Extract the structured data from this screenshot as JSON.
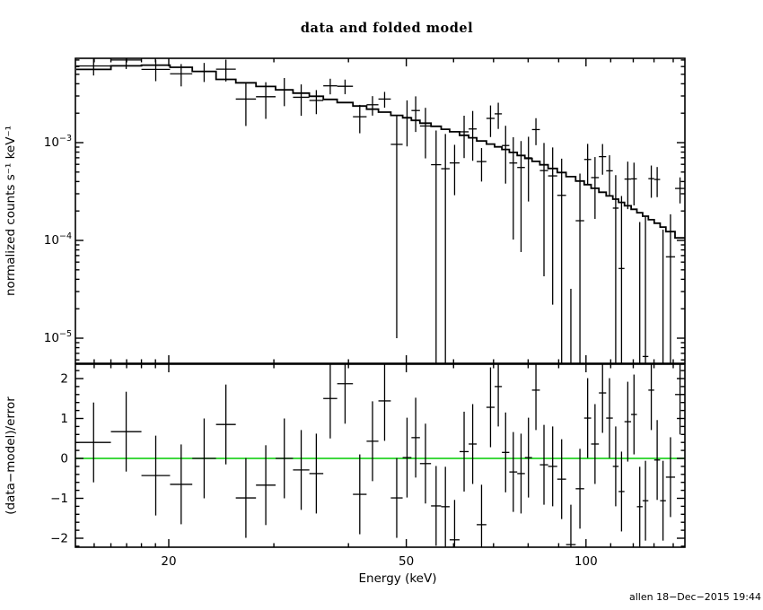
{
  "window_title": "data and folded model",
  "title": "data and folded model",
  "xlabel": "Energy (keV)",
  "ylabel_top": "normalized counts s⁻¹ keV⁻¹",
  "ylabel_bottom": "(data−model)/error",
  "timestamp": "allen 18−Dec−2015 19:44",
  "colors": {
    "foreground": "#000000",
    "background": "#ffffff",
    "zero_line": "#00CC00"
  },
  "chart_data": {
    "type": "scatter",
    "layout": "two stacked panels sharing a logarithmic energy axis",
    "x_axis": {
      "label": "Energy (keV)",
      "scale": "log",
      "range_kev": [
        14.0,
        146.5
      ],
      "major_ticks": [
        20,
        50,
        100
      ],
      "major_tick_labels": [
        "20",
        "50",
        "100"
      ],
      "minor_ticks": [
        15,
        16,
        17,
        18,
        19,
        30,
        40,
        60,
        70,
        80,
        90,
        110,
        120,
        130,
        140
      ]
    },
    "top_panel": {
      "description": "spectrum: data points with error bars and folded model histogram",
      "y_axis": {
        "label": "normalized counts s⁻¹ keV⁻¹",
        "scale": "log",
        "range": [
          5.5e-06,
          0.0073
        ],
        "major_ticks": [
          0.001,
          0.0001,
          1e-05
        ],
        "major_tick_labels": [
          {
            "base": "10",
            "exp": "−3"
          },
          {
            "base": "10",
            "exp": "−4"
          },
          {
            "base": "10",
            "exp": "−5"
          }
        ]
      },
      "bin_edges_kev": [
        14.0,
        16.0,
        18.0,
        20.1,
        21.9,
        24.0,
        25.9,
        28.0,
        30.2,
        32.3,
        34.4,
        36.3,
        38.3,
        40.7,
        42.9,
        44.9,
        47.1,
        49.3,
        51.0,
        52.7,
        55.0,
        57.2,
        59.1,
        61.4,
        63.6,
        65.6,
        68.1,
        70.3,
        72.3,
        74.4,
        76.7,
        79.0,
        81.2,
        83.7,
        86.4,
        89.5,
        92.6,
        96.1,
        99.3,
        102.0,
        105.1,
        108.1,
        110.9,
        113.4,
        116.0,
        119.0,
        121.7,
        124.4,
        127.2,
        130.1,
        133.1,
        136.1,
        141.0,
        146.5
      ],
      "model": [
        0.0056,
        0.0061,
        0.0062,
        0.0059,
        0.00535,
        0.00443,
        0.00409,
        0.00375,
        0.00347,
        0.00321,
        0.00298,
        0.00277,
        0.00257,
        0.00237,
        0.0022,
        0.00205,
        0.0019,
        0.00179,
        0.00169,
        0.00158,
        0.00147,
        0.00137,
        0.00129,
        0.00119,
        0.00112,
        0.00104,
        0.000967,
        0.000906,
        0.000851,
        0.000795,
        0.00074,
        0.00069,
        0.000643,
        0.000594,
        0.000544,
        0.000495,
        0.000449,
        0.000405,
        0.000372,
        0.000341,
        0.000311,
        0.000285,
        0.000264,
        0.000245,
        0.000226,
        0.000208,
        0.000192,
        0.000177,
        0.000163,
        0.00015,
        0.000137,
        0.000123,
        0.000106
      ],
      "rate": [
        0.00609,
        0.007,
        0.00561,
        0.00506,
        0.00535,
        0.00564,
        0.00279,
        0.00295,
        0.00347,
        0.00291,
        0.0027,
        0.00381,
        0.00377,
        0.00184,
        0.00244,
        0.00279,
        0.00096,
        0.00181,
        0.00213,
        0.00148,
        0.000595,
        0.000541,
        0.00062,
        0.00129,
        0.00138,
        0.00064,
        0.00177,
        0.00197,
        0.000934,
        0.000619,
        0.000557,
        0.000699,
        0.00136,
        0.000518,
        0.000457,
        0.000289,
        -0.000327,
        0.000159,
        0.000673,
        0.000439,
        0.000719,
        0.000515,
        0.000214,
        5.16e-05,
        0.000424,
        0.000426,
        -2.8e-05,
        6.5e-06,
        0.000428,
        0.00042,
        -1e-06,
        6.8e-05,
        0.00034
      ],
      "rate_err": [
        0.00123,
        0.00134,
        0.00136,
        0.0013,
        0.00118,
        0.00142,
        0.00131,
        0.0012,
        0.00111,
        0.00103,
        0.000745,
        0.000693,
        0.000643,
        0.000593,
        0.00055,
        0.000513,
        0.00095,
        0.000895,
        0.000845,
        0.00079,
        0.000735,
        0.000685,
        0.00033,
        0.000595,
        0.000728,
        0.00024,
        0.000629,
        0.000589,
        0.000553,
        0.000517,
        0.000481,
        0.000449,
        0.000418,
        0.000475,
        0.000435,
        0.000396,
        0.000359,
        0.000324,
        0.000298,
        0.000273,
        0.000249,
        0.000228,
        0.000251,
        0.000233,
        0.000215,
        0.000198,
        0.000182,
        0.000168,
        0.000155,
        0.000143,
        0.00013,
        0.000117,
        0.000101
      ]
    },
    "bottom_panel": {
      "description": "residuals (data−model)/error with ±1 error bars",
      "y_axis": {
        "label": "(data−model)/error",
        "scale": "linear",
        "range": [
          -2.3,
          2.36
        ],
        "major_ticks": [
          -2,
          -1,
          0,
          1,
          2
        ],
        "major_tick_labels": [
          "−2",
          "−1",
          "0",
          "1",
          "2"
        ],
        "minor_step": 0.2
      },
      "residuals": [
        0.4,
        0.67,
        -0.43,
        -0.65,
        0.0,
        0.85,
        -0.99,
        -0.67,
        0.0,
        -0.29,
        -0.38,
        1.5,
        1.87,
        -0.9,
        0.43,
        1.44,
        -0.99,
        0.02,
        0.52,
        -0.13,
        -1.19,
        -1.21,
        -2.04,
        0.17,
        0.36,
        -1.66,
        1.28,
        1.8,
        0.15,
        -0.34,
        -0.38,
        0.02,
        1.71,
        -0.16,
        -0.2,
        -0.52,
        -2.16,
        -0.76,
        1.01,
        0.36,
        1.64,
        1.01,
        -0.2,
        -0.83,
        0.92,
        1.1,
        -1.21,
        -1.06,
        1.71,
        -0.04,
        -1.06,
        -0.47,
        1.6
      ],
      "residual_err": 1,
      "zero_line": {
        "y": 0,
        "color": "#00CC00"
      }
    }
  }
}
